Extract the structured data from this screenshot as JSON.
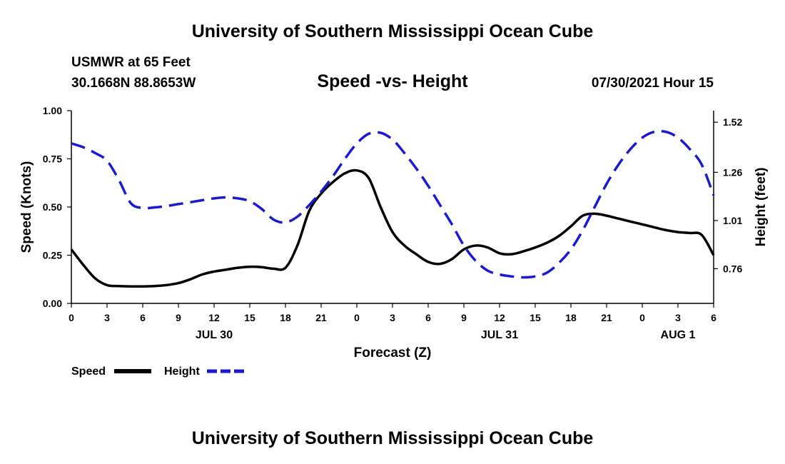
{
  "org_title_top": "University of Southern Mississippi Ocean Cube",
  "org_title_bottom": "University of Southern Mississippi Ocean Cube",
  "station": {
    "name": "USMWR at 65 Feet",
    "coords": "30.1668N  88.8653W"
  },
  "forecast_time": "07/30/2021 Hour 15",
  "colors": {
    "speed": "#000000",
    "height": "#1a1ad0"
  },
  "chart_data": {
    "type": "line",
    "title": "Speed -vs- Height",
    "xlabel": "Forecast (Z)",
    "ylabel": "Speed (Knots)",
    "y2label": "Height (feet)",
    "xlim": [
      0,
      54
    ],
    "ylim": [
      0,
      1.0
    ],
    "y2lim": [
      0.58,
      1.58
    ],
    "x_ticks": [
      0,
      3,
      6,
      9,
      12,
      15,
      18,
      21,
      24,
      27,
      30,
      33,
      36,
      39,
      42,
      45,
      48,
      51,
      54
    ],
    "x_tick_labels": [
      "0",
      "3",
      "6",
      "9",
      "12",
      "15",
      "18",
      "21",
      "0",
      "3",
      "6",
      "9",
      "12",
      "15",
      "18",
      "21",
      "0",
      "3",
      "6"
    ],
    "y_ticks": [
      0,
      0.25,
      0.5,
      0.75,
      1.0
    ],
    "y_tick_labels": [
      "0.00",
      "0.25",
      "0.50",
      "0.75",
      "1.00"
    ],
    "y2_ticks": [
      0.76,
      1.01,
      1.26,
      1.52
    ],
    "y2_tick_labels": [
      "0.76",
      "1.01",
      "1.26",
      "1.52"
    ],
    "date_labels": [
      {
        "label": "JUL 30",
        "x": 12
      },
      {
        "label": "JUL 31",
        "x": 36
      },
      {
        "label": "AUG 1",
        "x": 51
      }
    ],
    "series": [
      {
        "name": "Speed",
        "axis": "left",
        "style": "solid",
        "x": [
          0,
          1,
          2,
          3,
          4,
          5,
          6,
          7,
          8,
          9,
          10,
          11,
          12,
          13,
          14,
          15,
          16,
          17,
          18,
          19,
          20,
          21,
          22,
          23,
          24,
          25,
          26,
          27,
          28,
          29,
          30,
          31,
          32,
          33,
          34,
          35,
          36,
          37,
          38,
          39,
          40,
          41,
          42,
          43,
          44,
          45,
          46,
          47,
          48,
          49,
          50,
          51,
          52,
          53,
          54
        ],
        "values": [
          0.28,
          0.2,
          0.13,
          0.095,
          0.09,
          0.088,
          0.088,
          0.09,
          0.095,
          0.105,
          0.125,
          0.15,
          0.165,
          0.175,
          0.185,
          0.19,
          0.188,
          0.18,
          0.185,
          0.3,
          0.48,
          0.57,
          0.63,
          0.675,
          0.69,
          0.65,
          0.5,
          0.37,
          0.3,
          0.255,
          0.215,
          0.205,
          0.23,
          0.28,
          0.3,
          0.29,
          0.26,
          0.255,
          0.27,
          0.29,
          0.315,
          0.35,
          0.4,
          0.455,
          0.465,
          0.455,
          0.44,
          0.425,
          0.41,
          0.395,
          0.38,
          0.37,
          0.365,
          0.355,
          0.25
        ]
      },
      {
        "name": "Height",
        "axis": "right",
        "style": "dashed",
        "x": [
          0,
          1,
          2,
          3,
          4,
          5,
          6,
          7,
          8,
          9,
          10,
          11,
          12,
          13,
          14,
          15,
          16,
          17,
          18,
          19,
          20,
          21,
          22,
          23,
          24,
          25,
          26,
          27,
          28,
          29,
          30,
          31,
          32,
          33,
          34,
          35,
          36,
          37,
          38,
          39,
          40,
          41,
          42,
          43,
          44,
          45,
          46,
          47,
          48,
          49,
          50,
          51,
          52,
          53,
          54
        ],
        "values": [
          1.41,
          1.39,
          1.36,
          1.32,
          1.22,
          1.1,
          1.075,
          1.078,
          1.085,
          1.095,
          1.105,
          1.115,
          1.125,
          1.13,
          1.125,
          1.11,
          1.07,
          1.015,
          1.0,
          1.03,
          1.09,
          1.16,
          1.24,
          1.33,
          1.41,
          1.46,
          1.465,
          1.43,
          1.36,
          1.28,
          1.19,
          1.09,
          0.99,
          0.88,
          0.8,
          0.75,
          0.73,
          0.72,
          0.715,
          0.72,
          0.74,
          0.79,
          0.86,
          0.96,
          1.08,
          1.2,
          1.3,
          1.38,
          1.44,
          1.47,
          1.47,
          1.44,
          1.38,
          1.3,
          1.14
        ]
      }
    ],
    "legend": [
      {
        "label": "Speed",
        "style": "solid"
      },
      {
        "label": "Height",
        "style": "dashed"
      }
    ]
  }
}
